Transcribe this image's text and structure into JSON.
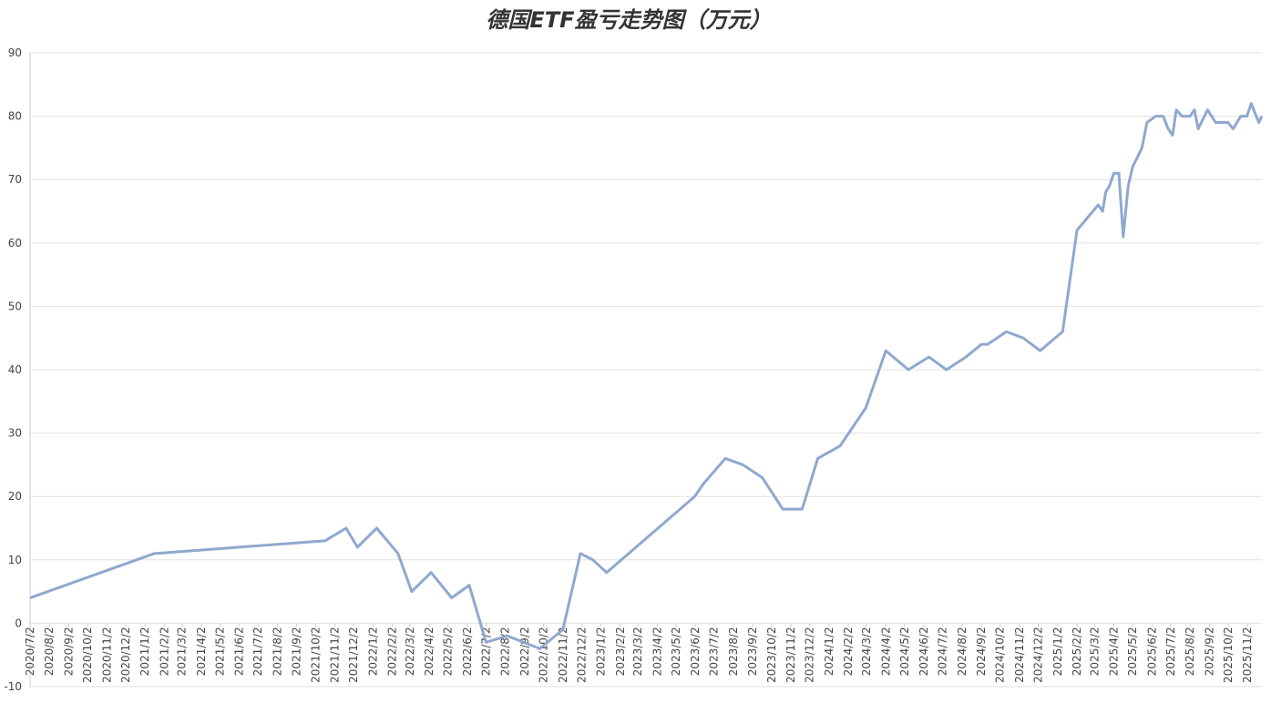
{
  "chart_data": {
    "type": "line",
    "title": "德国ETF盈亏走势图（万元）",
    "x": [
      "2020/7/2",
      "2021/1/17",
      "2021/10/17",
      "2021/11/20",
      "2021/12/8",
      "2022/1/8",
      "2022/2/11",
      "2022/3/5",
      "2022/4/5",
      "2022/5/8",
      "2022/6/5",
      "2022/7/2",
      "2022/8/5",
      "2022/9/26",
      "2022/11/2",
      "2022/11/30",
      "2022/12/20",
      "2023/1/11",
      "2023/6/1",
      "2023/6/15",
      "2023/7/20",
      "2023/8/17",
      "2023/9/17",
      "2023/10/20",
      "2023/11/20",
      "2023/12/15",
      "2024/1/20",
      "2024/3/1",
      "2024/4/2",
      "2024/5/8",
      "2024/6/10",
      "2024/7/8",
      "2024/8/8",
      "2024/9/2",
      "2024/9/12",
      "2024/10/12",
      "2024/11/8",
      "2024/12/5",
      "2025/1/10",
      "2025/2/2",
      "2025/3/8",
      "2025/3/15",
      "2025/3/20",
      "2025/3/26",
      "2025/4/2",
      "2025/4/10",
      "2025/4/17",
      "2025/4/25",
      "2025/5/2",
      "2025/5/17",
      "2025/5/25",
      "2025/6/8",
      "2025/6/20",
      "2025/6/28",
      "2025/7/5",
      "2025/7/11",
      "2025/7/20",
      "2025/8/2",
      "2025/8/9",
      "2025/8/15",
      "2025/8/30",
      "2025/9/12",
      "2025/10/2",
      "2025/10/10",
      "2025/10/22",
      "2025/11/1",
      "2025/11/8",
      "2025/11/20",
      "2025/11/25"
    ],
    "series": [
      {
        "color": "#8fa8cf",
        "values": [
          4,
          11,
          13,
          15,
          12,
          15,
          11,
          5,
          8,
          4,
          6,
          -3,
          -2,
          -4,
          -1,
          11,
          10,
          8,
          20,
          22,
          26,
          25,
          23,
          18,
          18,
          26,
          28,
          34,
          43,
          40,
          42,
          40,
          42,
          44,
          44,
          46,
          45,
          43,
          46,
          62,
          66,
          65,
          68,
          69,
          71,
          71,
          61,
          69,
          72,
          75,
          79,
          80,
          80,
          78,
          77,
          81,
          80,
          80,
          81,
          78,
          81,
          79,
          79,
          78,
          80,
          80,
          82,
          79,
          80
        ]
      }
    ],
    "xlim": [
      "2020/7/2",
      "2025/11/25"
    ],
    "xticks": [
      "2020/7/2",
      "2020/8/2",
      "2020/9/2",
      "2020/10/2",
      "2020/11/2",
      "2020/12/2",
      "2021/1/2",
      "2021/2/2",
      "2021/3/2",
      "2021/4/2",
      "2021/5/2",
      "2021/6/2",
      "2021/7/2",
      "2021/8/2",
      "2021/9/2",
      "2021/10/2",
      "2021/11/2",
      "2021/12/2",
      "2022/1/2",
      "2022/2/2",
      "2022/3/2",
      "2022/4/2",
      "2022/5/2",
      "2022/6/2",
      "2022/7/2",
      "2022/8/2",
      "2022/9/2",
      "2022/10/2",
      "2022/11/2",
      "2022/12/2",
      "2023/1/2",
      "2023/2/2",
      "2023/3/2",
      "2023/4/2",
      "2023/5/2",
      "2023/6/2",
      "2023/7/2",
      "2023/8/2",
      "2023/9/2",
      "2023/10/2",
      "2023/11/2",
      "2023/12/2",
      "2024/1/2",
      "2024/2/2",
      "2024/3/2",
      "2024/4/2",
      "2024/5/2",
      "2024/6/2",
      "2024/7/2",
      "2024/8/2",
      "2024/9/2",
      "2024/10/2",
      "2024/11/2",
      "2024/12/2",
      "2025/1/2",
      "2025/2/2",
      "2025/3/2",
      "2025/4/2",
      "2025/5/2",
      "2025/6/2",
      "2025/7/2",
      "2025/8/2",
      "2025/9/2",
      "2025/10/2",
      "2025/11/2"
    ],
    "ylim": [
      -10,
      90
    ],
    "yticks": [
      -10,
      0,
      10,
      20,
      30,
      40,
      50,
      60,
      70,
      80,
      90
    ],
    "grid": true
  }
}
